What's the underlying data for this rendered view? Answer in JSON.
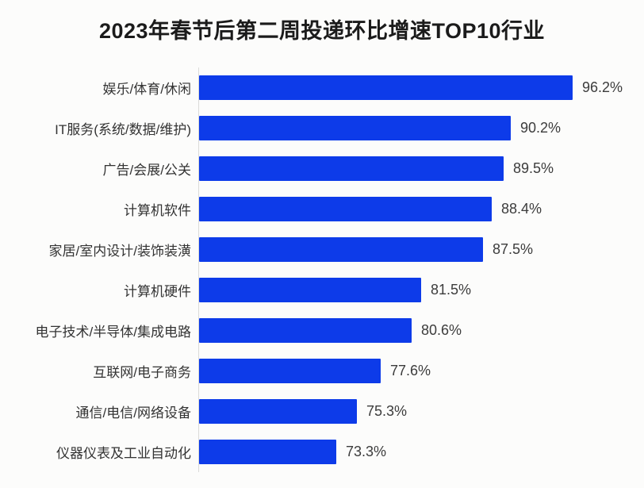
{
  "chart_data": {
    "type": "bar",
    "orientation": "horizontal",
    "title": "2023年春节后第二周投递环比增速TOP10行业",
    "categories": [
      "娱乐/体育/休闲",
      "IT服务(系统/数据/维护)",
      "广告/会展/公关",
      "计算机软件",
      "家居/室内设计/装饰装潢",
      "计算机硬件",
      "电子技术/半导体/集成电路",
      "互联网/电子商务",
      "通信/电信/网络设备",
      "仪器仪表及工业自动化"
    ],
    "values": [
      96.2,
      90.2,
      89.5,
      88.4,
      87.5,
      81.5,
      80.6,
      77.6,
      75.3,
      73.3
    ],
    "value_labels": [
      "96.2%",
      "90.2%",
      "89.5%",
      "88.4%",
      "87.5%",
      "81.5%",
      "80.6%",
      "77.6%",
      "75.3%",
      "73.3%"
    ],
    "xlabel": "",
    "ylabel": "",
    "xlim": [
      60,
      100
    ],
    "grid": false,
    "legend": null,
    "value_labels_shown": true,
    "bar_color": "#0d3be9",
    "title_color": "#1b1b1b",
    "label_color": "#333333",
    "value_color": "#3c3c3c"
  }
}
